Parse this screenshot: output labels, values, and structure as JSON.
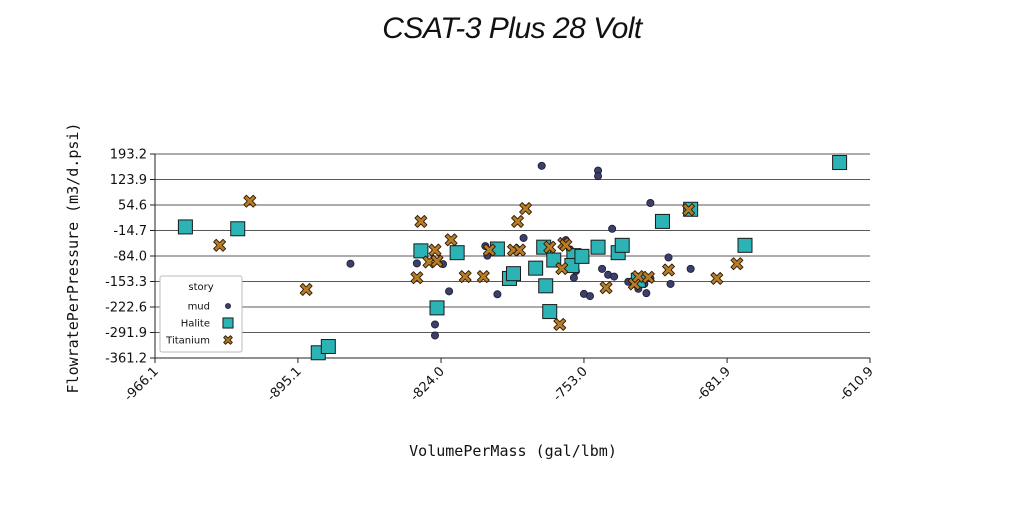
{
  "chart_data": {
    "type": "scatter",
    "title": "CSAT-3 Plus 28 Volt",
    "xlabel": "VolumePerMass (gal/lbm)",
    "ylabel": "FlowratePerPressure (m3/d.psi)",
    "xlim": [
      -966.1,
      -610.9
    ],
    "ylim": [
      -361.2,
      193.2
    ],
    "xticks": [
      "-966.1",
      "-895.1",
      "-824.0",
      "-753.0",
      "-681.9",
      "-610.9"
    ],
    "yticks": [
      "193.2",
      "123.9",
      "54.6",
      "-14.7",
      "-84.0",
      "-153.3",
      "-222.6",
      "-291.9",
      "-361.2"
    ],
    "grid": "horizontal",
    "legend": {
      "title": "story",
      "placement": "lower-left"
    },
    "series": [
      {
        "name": "mud",
        "marker": "circle",
        "color": "#3d3f6b",
        "points": [
          [
            -869,
            -105
          ],
          [
            -836,
            -104
          ],
          [
            -827,
            -270
          ],
          [
            -827,
            -300
          ],
          [
            -823,
            -106
          ],
          [
            -820,
            -180
          ],
          [
            -815,
            -83
          ],
          [
            -802,
            -57
          ],
          [
            -801,
            -83
          ],
          [
            -796,
            -188
          ],
          [
            -789,
            -125
          ],
          [
            -783,
            -35
          ],
          [
            -774,
            161
          ],
          [
            -762,
            -41
          ],
          [
            -760,
            -66
          ],
          [
            -758,
            -143
          ],
          [
            -757,
            -125
          ],
          [
            -753,
            -187
          ],
          [
            -750,
            -193
          ],
          [
            -746,
            148
          ],
          [
            -746,
            133
          ],
          [
            -744,
            -119
          ],
          [
            -741,
            -135
          ],
          [
            -739,
            -10
          ],
          [
            -738,
            -140
          ],
          [
            -731,
            -154
          ],
          [
            -726,
            -173
          ],
          [
            -722,
            -185
          ],
          [
            -723,
            -160
          ],
          [
            -720,
            60
          ],
          [
            -711,
            -88
          ],
          [
            -710,
            -160
          ],
          [
            -700,
            -119
          ],
          [
            -720,
            -145
          ]
        ]
      },
      {
        "name": "Halite",
        "marker": "square",
        "color": "#2bb3b5",
        "points": [
          [
            -951,
            -5
          ],
          [
            -925,
            -10
          ],
          [
            -885,
            -347
          ],
          [
            -880,
            -330
          ],
          [
            -834,
            -70
          ],
          [
            -826,
            -225
          ],
          [
            -816,
            -75
          ],
          [
            -796,
            -65
          ],
          [
            -790,
            -145
          ],
          [
            -788,
            -132
          ],
          [
            -777,
            -117
          ],
          [
            -772,
            -165
          ],
          [
            -773,
            -60
          ],
          [
            -770,
            -235
          ],
          [
            -768,
            -95
          ],
          [
            -758,
            -83
          ],
          [
            -759,
            -110
          ],
          [
            -754,
            -85
          ],
          [
            -746,
            -60
          ],
          [
            -736,
            -75
          ],
          [
            -734,
            -55
          ],
          [
            -726,
            -150
          ],
          [
            -714,
            10
          ],
          [
            -700,
            43
          ],
          [
            -673,
            -55
          ],
          [
            -626,
            170
          ]
        ]
      },
      {
        "name": "Titanium",
        "marker": "x",
        "color": "#b87b26",
        "points": [
          [
            -934,
            -55
          ],
          [
            -919,
            65
          ],
          [
            -891,
            -175
          ],
          [
            -834,
            10
          ],
          [
            -836,
            -143
          ],
          [
            -830,
            -100
          ],
          [
            -827,
            -68
          ],
          [
            -826,
            -98
          ],
          [
            -819,
            -40
          ],
          [
            -812,
            -140
          ],
          [
            -803,
            -140
          ],
          [
            -800,
            -68
          ],
          [
            -788,
            -68
          ],
          [
            -786,
            10
          ],
          [
            -785,
            -68
          ],
          [
            -782,
            45
          ],
          [
            -770,
            -60
          ],
          [
            -765,
            -270
          ],
          [
            -763,
            -50
          ],
          [
            -764,
            -118
          ],
          [
            -762,
            -55
          ],
          [
            -742,
            -170
          ],
          [
            -728,
            -160
          ],
          [
            -726,
            -140
          ],
          [
            -721,
            -142
          ],
          [
            -711,
            -122
          ],
          [
            -701,
            42
          ],
          [
            -687,
            -145
          ],
          [
            -677,
            -105
          ]
        ]
      }
    ]
  }
}
